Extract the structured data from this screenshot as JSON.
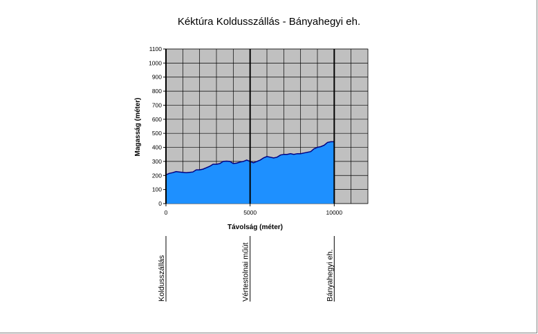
{
  "chart_data": {
    "type": "area",
    "title": "Kéktúra Koldusszállás - Bányahegyi eh.",
    "xlabel": "Távolság (méter)",
    "ylabel": "Magasság (méter)",
    "xlim": [
      0,
      12000
    ],
    "ylim": [
      0,
      1100
    ],
    "x_ticks": [
      "0",
      "5000",
      "10000"
    ],
    "y_ticks": [
      "0",
      "100",
      "200",
      "300",
      "400",
      "500",
      "600",
      "700",
      "800",
      "900",
      "1000",
      "1100"
    ],
    "x_grid_step": 1000,
    "y_grid_step": 100,
    "grid": true,
    "plot_background": "#c0c0c0",
    "fill_color": "#1e90ff",
    "line_color": "#000080",
    "x": [
      0,
      200,
      400,
      600,
      800,
      1000,
      1200,
      1400,
      1600,
      1800,
      2000,
      2200,
      2400,
      2600,
      2800,
      3000,
      3200,
      3400,
      3600,
      3800,
      4000,
      4200,
      4400,
      4600,
      4800,
      5000,
      5200,
      5400,
      5600,
      5800,
      6000,
      6200,
      6400,
      6600,
      6800,
      7000,
      7200,
      7400,
      7600,
      7800,
      8000,
      8200,
      8400,
      8600,
      8800,
      9000,
      9200,
      9400,
      9600,
      9800,
      10000
    ],
    "values": [
      205,
      215,
      220,
      228,
      225,
      222,
      220,
      222,
      225,
      240,
      240,
      245,
      255,
      265,
      280,
      280,
      285,
      300,
      302,
      300,
      285,
      288,
      295,
      300,
      310,
      300,
      290,
      300,
      310,
      325,
      335,
      330,
      325,
      330,
      345,
      350,
      350,
      355,
      350,
      355,
      355,
      360,
      365,
      370,
      390,
      400,
      405,
      415,
      435,
      440,
      440
    ],
    "waypoints": [
      {
        "x": 0,
        "label": "Koldusszállás"
      },
      {
        "x": 5000,
        "label": "Vértestolnai műút"
      },
      {
        "x": 10000,
        "label": "Bányahegyi eh."
      }
    ]
  }
}
